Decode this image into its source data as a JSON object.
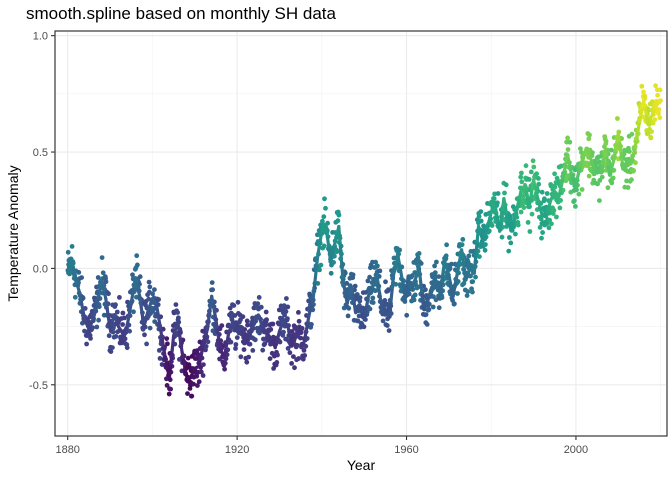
{
  "chart_data": {
    "type": "scatter",
    "title": "smooth.spline based on monthly SH data",
    "xlabel": "Year",
    "ylabel": "Temperature Anomaly",
    "xlim": [
      1877,
      2021.5
    ],
    "ylim": [
      -0.72,
      1.02
    ],
    "x_ticks": [
      1880,
      1920,
      1960,
      2000
    ],
    "y_ticks": [
      -0.5,
      0.0,
      0.5,
      1.0
    ],
    "y_tick_labels": [
      "-0.5",
      "0.0",
      "0.5",
      "1.0"
    ],
    "grid": true,
    "legend": "none",
    "color_scale": "viridis (by fitted value)",
    "viridis_stops": [
      "#440154",
      "#482878",
      "#3e4a89",
      "#31688e",
      "#26828e",
      "#1f9e89",
      "#35b779",
      "#6ece58",
      "#b5de2b",
      "#fde725"
    ],
    "smooth_spline": {
      "x": [
        1880,
        1881,
        1882,
        1883,
        1884,
        1885,
        1886,
        1887,
        1888,
        1889,
        1890,
        1891,
        1892,
        1893,
        1894,
        1895,
        1896,
        1897,
        1898,
        1899,
        1900,
        1901,
        1902,
        1903,
        1904,
        1905,
        1906,
        1907,
        1908,
        1909,
        1910,
        1911,
        1912,
        1913,
        1914,
        1915,
        1916,
        1917,
        1918,
        1919,
        1920,
        1921,
        1922,
        1923,
        1924,
        1925,
        1926,
        1927,
        1928,
        1929,
        1930,
        1931,
        1932,
        1933,
        1934,
        1935,
        1936,
        1937,
        1938,
        1939,
        1940,
        1941,
        1942,
        1943,
        1944,
        1945,
        1946,
        1947,
        1948,
        1949,
        1950,
        1951,
        1952,
        1953,
        1954,
        1955,
        1956,
        1957,
        1958,
        1959,
        1960,
        1961,
        1962,
        1963,
        1964,
        1965,
        1966,
        1967,
        1968,
        1969,
        1970,
        1971,
        1972,
        1973,
        1974,
        1975,
        1976,
        1977,
        1978,
        1979,
        1980,
        1981,
        1982,
        1983,
        1984,
        1985,
        1986,
        1987,
        1988,
        1989,
        1990,
        1991,
        1992,
        1993,
        1994,
        1995,
        1996,
        1997,
        1998,
        1999,
        2000,
        2001,
        2002,
        2003,
        2004,
        2005,
        2006,
        2007,
        2008,
        2009,
        2010,
        2011,
        2012,
        2013,
        2014,
        2015,
        2016,
        2017,
        2018,
        2019
      ],
      "y": [
        -0.02,
        0.03,
        -0.05,
        -0.12,
        -0.22,
        -0.26,
        -0.22,
        -0.15,
        -0.05,
        -0.13,
        -0.26,
        -0.2,
        -0.25,
        -0.28,
        -0.25,
        -0.15,
        -0.04,
        -0.12,
        -0.25,
        -0.18,
        -0.13,
        -0.16,
        -0.27,
        -0.38,
        -0.47,
        -0.29,
        -0.23,
        -0.36,
        -0.46,
        -0.47,
        -0.43,
        -0.42,
        -0.33,
        -0.26,
        -0.12,
        -0.22,
        -0.35,
        -0.38,
        -0.28,
        -0.23,
        -0.27,
        -0.25,
        -0.31,
        -0.27,
        -0.24,
        -0.2,
        -0.25,
        -0.28,
        -0.3,
        -0.34,
        -0.27,
        -0.22,
        -0.25,
        -0.33,
        -0.29,
        -0.3,
        -0.3,
        -0.2,
        -0.12,
        0.05,
        0.16,
        0.18,
        0.04,
        0.1,
        0.18,
        -0.05,
        -0.15,
        -0.08,
        -0.19,
        -0.17,
        -0.22,
        -0.12,
        -0.08,
        -0.03,
        -0.15,
        -0.18,
        -0.2,
        -0.02,
        0.05,
        -0.05,
        -0.12,
        -0.08,
        -0.05,
        0.0,
        -0.17,
        -0.14,
        -0.08,
        -0.06,
        -0.1,
        0.03,
        -0.03,
        -0.12,
        -0.02,
        0.08,
        -0.05,
        0.0,
        -0.02,
        0.18,
        0.12,
        0.17,
        0.24,
        0.26,
        0.16,
        0.3,
        0.19,
        0.18,
        0.25,
        0.33,
        0.36,
        0.27,
        0.38,
        0.3,
        0.23,
        0.22,
        0.29,
        0.33,
        0.31,
        0.39,
        0.49,
        0.4,
        0.36,
        0.44,
        0.49,
        0.5,
        0.44,
        0.41,
        0.42,
        0.51,
        0.4,
        0.47,
        0.58,
        0.45,
        0.44,
        0.45,
        0.52,
        0.63,
        0.72,
        0.62,
        0.66,
        0.71
      ]
    },
    "scatter_spread": 0.07
  }
}
